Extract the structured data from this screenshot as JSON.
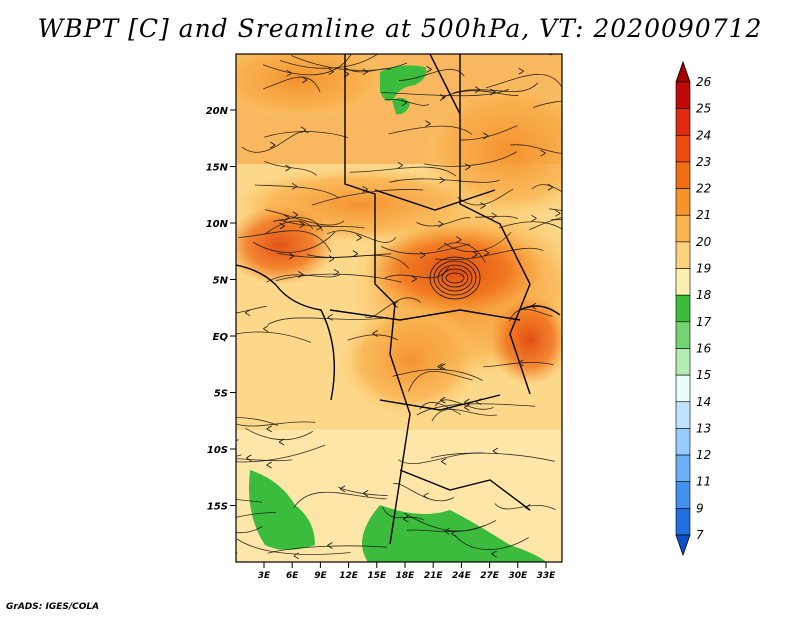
{
  "title": "WBPT [C] and Sreamline at 500hPa, VT: 2020090712",
  "footer": "GrADS: IGES/COLA",
  "map": {
    "region": "Africa (central/east)",
    "lat_labels": [
      "20N",
      "15N",
      "10N",
      "5N",
      "EQ",
      "5S",
      "10S",
      "15S"
    ],
    "lon_labels": [
      "3E",
      "6E",
      "9E",
      "12E",
      "15E",
      "18E",
      "21E",
      "24E",
      "27E",
      "30E",
      "33E"
    ],
    "layers": [
      "wet-bulb potential temperature shading",
      "500hPa streamlines",
      "country borders"
    ]
  },
  "colorbar": {
    "labels": [
      "26",
      "25",
      "24",
      "23",
      "22",
      "21",
      "20",
      "19",
      "18",
      "17",
      "16",
      "15",
      "14",
      "13",
      "12",
      "11",
      "9",
      "7"
    ],
    "colors": [
      "#a50000",
      "#c00a0a",
      "#e12a10",
      "#f04c12",
      "#f26e12",
      "#f8922a",
      "#fbb450",
      "#fcd27e",
      "#fdf1b1",
      "#3cbc3c",
      "#72d472",
      "#b4ecb4",
      "#eafcfc",
      "#c0e2fc",
      "#98ccfb",
      "#6cb0f5",
      "#4490ee",
      "#2170e0",
      "#1150cc"
    ]
  }
}
